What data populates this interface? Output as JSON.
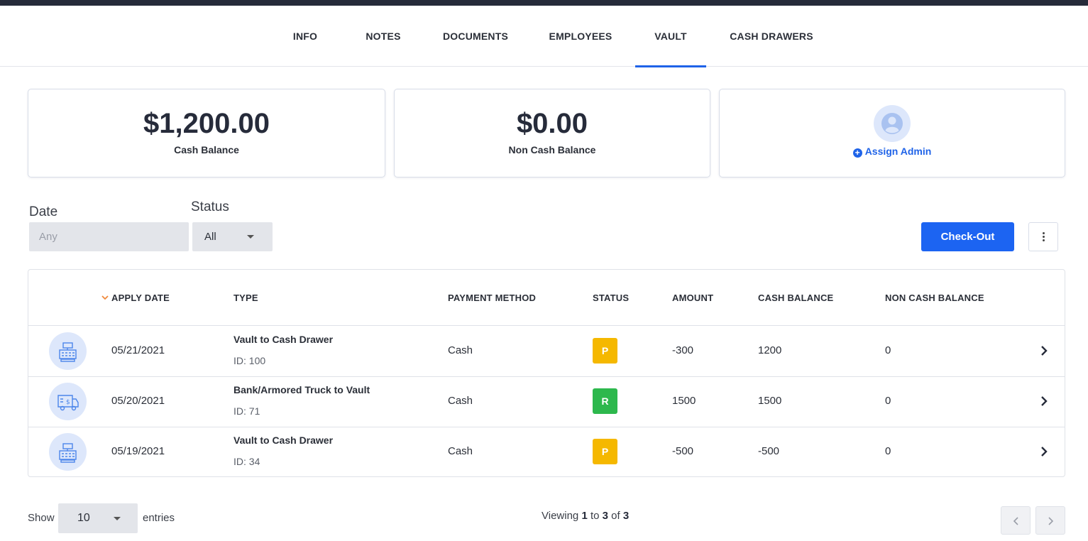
{
  "tabs": [
    {
      "label": "INFO"
    },
    {
      "label": "NOTES"
    },
    {
      "label": "DOCUMENTS"
    },
    {
      "label": "EMPLOYEES"
    },
    {
      "label": "VAULT",
      "active": true
    },
    {
      "label": "CASH DRAWERS"
    }
  ],
  "summary": {
    "cash_balance": {
      "value": "$1,200.00",
      "label": "Cash Balance"
    },
    "non_cash_balance": {
      "value": "$0.00",
      "label": "Non Cash Balance"
    },
    "admin": {
      "action_label": "Assign Admin",
      "icon": "user-avatar-icon"
    }
  },
  "filters": {
    "date": {
      "label": "Date",
      "placeholder": "Any"
    },
    "status": {
      "label": "Status",
      "value": "All"
    }
  },
  "toolbar": {
    "checkout_label": "Check-Out",
    "more_icon": "vertical-ellipsis-icon"
  },
  "table": {
    "columns": [
      "APPLY DATE",
      "TYPE",
      "PAYMENT METHOD",
      "STATUS",
      "AMOUNT",
      "CASH BALANCE",
      "NON CASH BALANCE"
    ],
    "sort": {
      "column": "APPLY DATE",
      "direction": "desc"
    },
    "rows": [
      {
        "icon": "cash-register-icon",
        "date": "05/21/2021",
        "type": "Vault to Cash Drawer",
        "id": "ID: 100",
        "method": "Cash",
        "status": "P",
        "status_color": "#f5b800",
        "amount": "-300",
        "cash_balance": "1200",
        "non_cash_balance": "0"
      },
      {
        "icon": "armored-truck-icon",
        "date": "05/20/2021",
        "type": "Bank/Armored Truck to Vault",
        "id": "ID: 71",
        "method": "Cash",
        "status": "R",
        "status_color": "#2db84d",
        "amount": "1500",
        "cash_balance": "1500",
        "non_cash_balance": "0"
      },
      {
        "icon": "cash-register-icon",
        "date": "05/19/2021",
        "type": "Vault to Cash Drawer",
        "id": "ID: 34",
        "method": "Cash",
        "status": "P",
        "status_color": "#f5b800",
        "amount": "-500",
        "cash_balance": "-500",
        "non_cash_balance": "0"
      }
    ]
  },
  "pagination": {
    "show_label": "Show",
    "page_size": "10",
    "entries_label": "entries",
    "viewing_prefix": "Viewing",
    "from": "1",
    "to_word": "to",
    "to": "3",
    "of_word": "of",
    "total": "3"
  },
  "colors": {
    "accent": "#1f63e8",
    "button": "#1c64f2",
    "topbar": "#262b3a",
    "pending": "#f5b800",
    "received": "#2db84d"
  }
}
